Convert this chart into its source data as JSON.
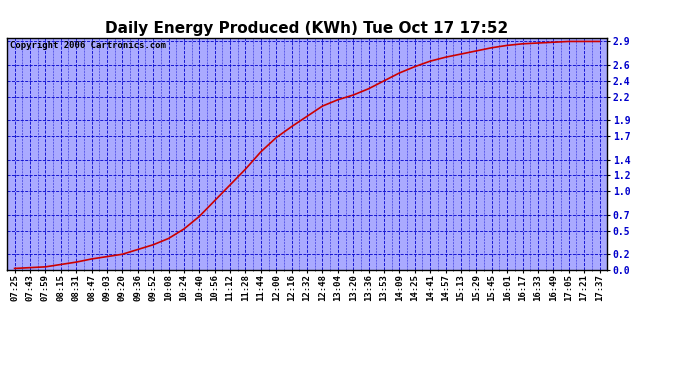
{
  "title": "Daily Energy Produced (KWh) Tue Oct 17 17:52",
  "copyright": "Copyright 2006 Cartronics.com",
  "line_color": "#cc0000",
  "background_color": "#ffffff",
  "plot_bg_color": "#aaaaff",
  "grid_color": "#0000cc",
  "border_color": "#000000",
  "ytick_color": "#0000cc",
  "xtick_color": "#000000",
  "ylim": [
    0.0,
    2.95
  ],
  "yticks": [
    0.0,
    0.2,
    0.5,
    0.7,
    1.0,
    1.2,
    1.4,
    1.7,
    1.9,
    2.2,
    2.4,
    2.6,
    2.9
  ],
  "x_labels": [
    "07:25",
    "07:43",
    "07:59",
    "08:15",
    "08:31",
    "08:47",
    "09:03",
    "09:20",
    "09:36",
    "09:52",
    "10:08",
    "10:24",
    "10:40",
    "10:56",
    "11:12",
    "11:28",
    "11:44",
    "12:00",
    "12:16",
    "12:32",
    "12:48",
    "13:04",
    "13:20",
    "13:36",
    "13:53",
    "14:09",
    "14:25",
    "14:41",
    "14:57",
    "15:13",
    "15:29",
    "15:45",
    "16:01",
    "16:17",
    "16:33",
    "16:49",
    "17:05",
    "17:21",
    "17:37"
  ],
  "y_values": [
    0.02,
    0.03,
    0.04,
    0.07,
    0.1,
    0.14,
    0.17,
    0.2,
    0.26,
    0.32,
    0.4,
    0.52,
    0.68,
    0.88,
    1.08,
    1.28,
    1.5,
    1.68,
    1.82,
    1.95,
    2.08,
    2.16,
    2.22,
    2.3,
    2.4,
    2.5,
    2.58,
    2.65,
    2.7,
    2.74,
    2.78,
    2.82,
    2.85,
    2.87,
    2.88,
    2.89,
    2.9,
    2.9,
    2.9
  ],
  "title_fontsize": 11,
  "tick_fontsize": 7,
  "copyright_fontsize": 6.5
}
